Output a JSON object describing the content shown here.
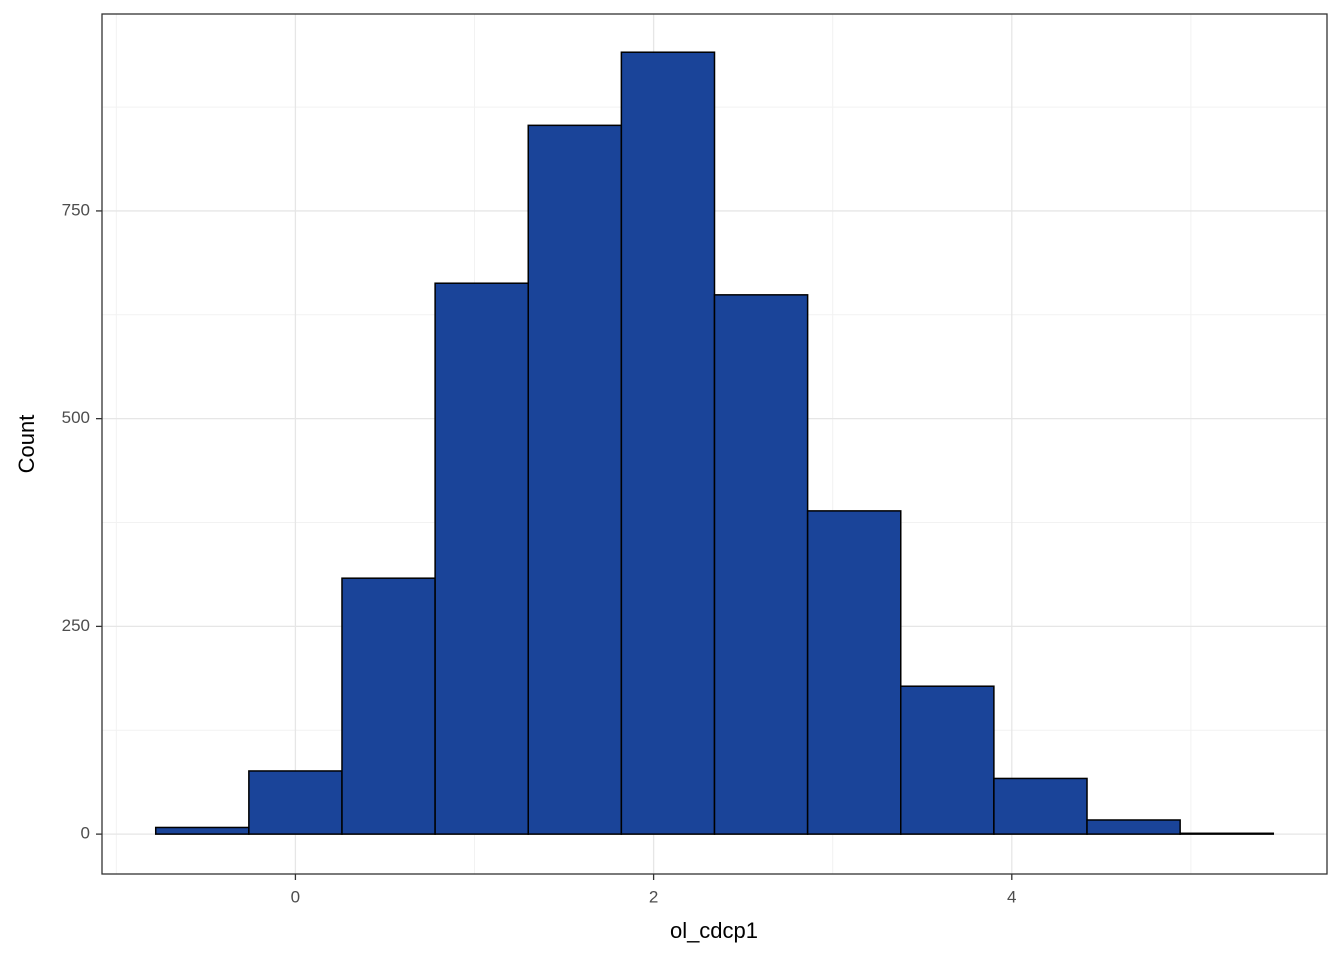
{
  "chart_data": {
    "type": "histogram",
    "x_label": "ol_cdcp1",
    "y_label": "Count",
    "bins": [
      -0.78,
      -0.26,
      0.26,
      0.78,
      1.3,
      1.82,
      2.34,
      2.86,
      3.38,
      3.9,
      4.42,
      4.94,
      5.46
    ],
    "values": [
      8,
      76,
      308,
      663,
      853,
      941,
      649,
      389,
      178,
      67,
      17,
      1
    ],
    "color": "#1a4499",
    "xlim": [
      -1.08,
      5.76
    ],
    "xticks": [
      0,
      2,
      4
    ],
    "x_minor_ticks": [
      -1,
      1,
      3,
      5
    ],
    "ylim": [
      -48,
      987
    ],
    "yticks": [
      0,
      250,
      500,
      750
    ],
    "y_minor_ticks": [
      125,
      375,
      625,
      875
    ],
    "grid": true
  }
}
